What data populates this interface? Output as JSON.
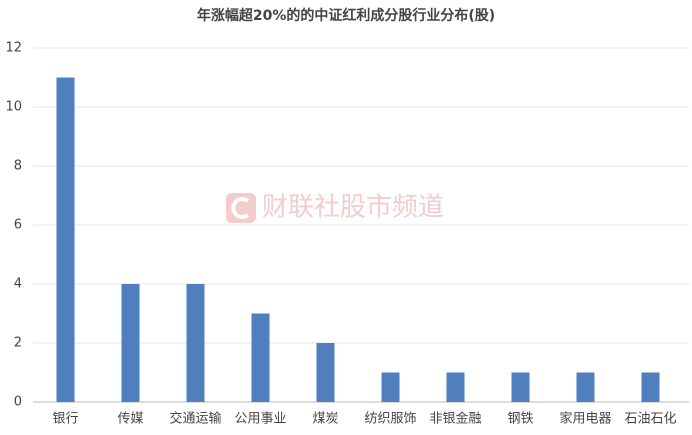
{
  "chart_data": {
    "type": "bar",
    "title": "年涨幅超20%的的中证红利成分股行业分布(股)",
    "watermark": "财联社股市频道",
    "categories": [
      "银行",
      "传媒",
      "交通运输",
      "公用事业",
      "煤炭",
      "纺织服饰",
      "非银金融",
      "钢铁",
      "家用电器",
      "石油石化"
    ],
    "values": [
      11,
      4,
      4,
      3,
      2,
      1,
      1,
      1,
      1,
      1
    ],
    "color": "#4f7fbd",
    "ylim": [
      0,
      12
    ],
    "yticks": [
      0,
      2,
      4,
      6,
      8,
      10,
      12
    ],
    "grid": true
  }
}
